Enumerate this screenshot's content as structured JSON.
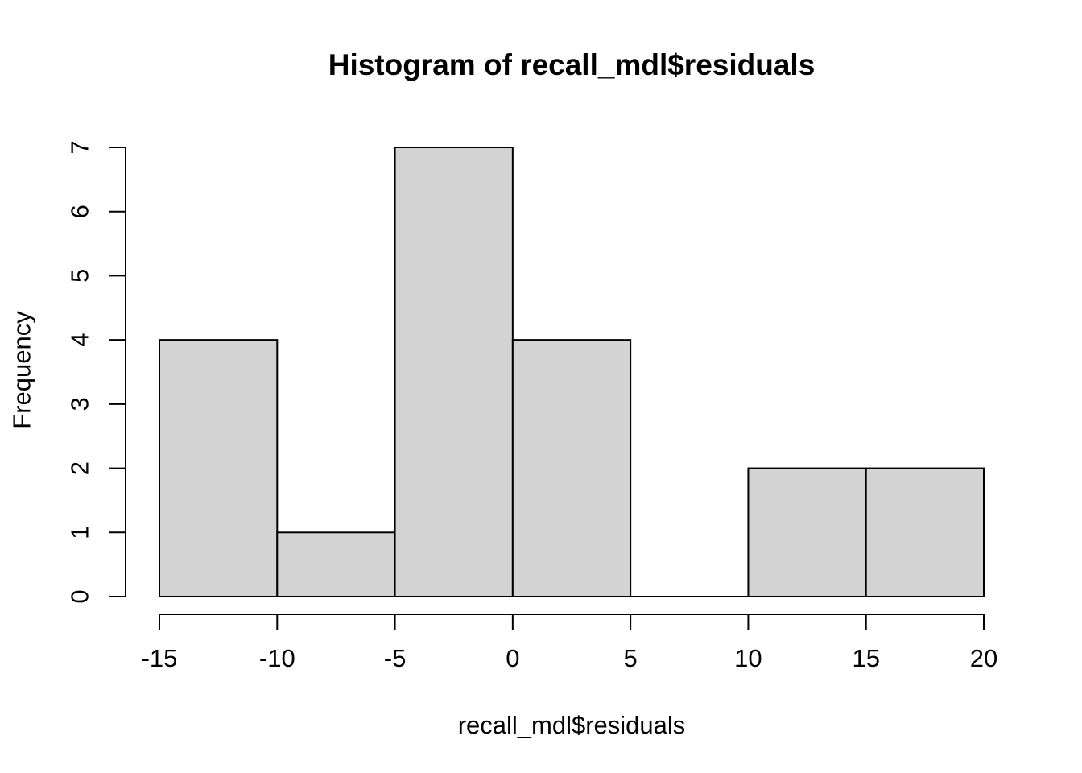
{
  "figure": {
    "background": "#ffffff"
  },
  "chart_data": {
    "type": "bar",
    "subtype": "histogram",
    "title": "Histogram of recall_mdl$residuals",
    "xlabel": "recall_mdl$residuals",
    "ylabel": "Frequency",
    "bins": [
      {
        "from": -15,
        "to": -10,
        "count": 4
      },
      {
        "from": -10,
        "to": -5,
        "count": 1
      },
      {
        "from": -5,
        "to": 0,
        "count": 7
      },
      {
        "from": 0,
        "to": 5,
        "count": 4
      },
      {
        "from": 5,
        "to": 10,
        "count": 0
      },
      {
        "from": 10,
        "to": 15,
        "count": 2
      },
      {
        "from": 15,
        "to": 20,
        "count": 2
      }
    ],
    "x_ticks": [
      "-15",
      "-10",
      "-5",
      "0",
      "5",
      "10",
      "15",
      "20"
    ],
    "x_tick_values": [
      -15,
      -10,
      -5,
      0,
      5,
      10,
      15,
      20
    ],
    "y_ticks": [
      "0",
      "1",
      "2",
      "3",
      "4",
      "5",
      "6",
      "7"
    ],
    "y_tick_values": [
      0,
      1,
      2,
      3,
      4,
      5,
      6,
      7
    ],
    "xlim": [
      -15,
      20
    ],
    "ylim": [
      0,
      7
    ],
    "grid": false,
    "legend": null,
    "bar_fill": "#d3d3d3",
    "line_color": "#000000",
    "text_color": "#000000"
  }
}
